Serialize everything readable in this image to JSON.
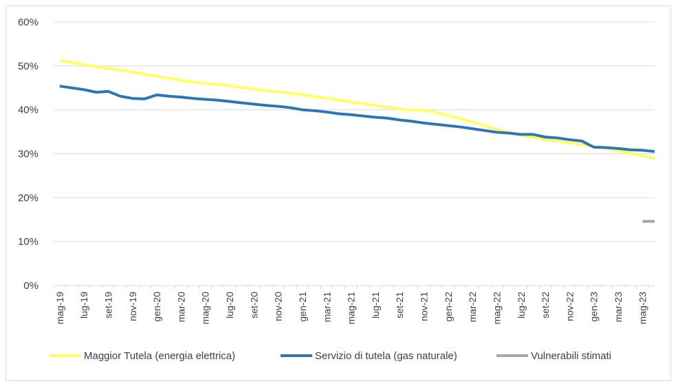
{
  "chart_data": {
    "type": "line",
    "title": "",
    "xlabel": "",
    "ylabel": "",
    "ylim": [
      0,
      60
    ],
    "y_ticks": [
      "0%",
      "10%",
      "20%",
      "30%",
      "40%",
      "50%",
      "60%"
    ],
    "y_tick_values": [
      0,
      10,
      20,
      30,
      40,
      50,
      60
    ],
    "gridlines": true,
    "legend_position": "bottom",
    "x": [
      "mag-19",
      "giu-19",
      "lug-19",
      "ago-19",
      "set-19",
      "ott-19",
      "nov-19",
      "dic-19",
      "gen-20",
      "feb-20",
      "mar-20",
      "apr-20",
      "mag-20",
      "giu-20",
      "lug-20",
      "ago-20",
      "set-20",
      "ott-20",
      "nov-20",
      "dic-20",
      "gen-21",
      "feb-21",
      "mar-21",
      "apr-21",
      "mag-21",
      "giu-21",
      "lug-21",
      "ago-21",
      "set-21",
      "ott-21",
      "nov-21",
      "dic-21",
      "gen-22",
      "feb-22",
      "mar-22",
      "apr-22",
      "mag-22",
      "giu-22",
      "lug-22",
      "ago-22",
      "set-22",
      "ott-22",
      "nov-22",
      "dic-22",
      "gen-23",
      "feb-23",
      "mar-23",
      "apr-23",
      "mag-23",
      "giu-23"
    ],
    "x_tick_labels": [
      "mag-19",
      "lug-19",
      "set-19",
      "nov-19",
      "gen-20",
      "mar-20",
      "mag-20",
      "lug-20",
      "set-20",
      "nov-20",
      "gen-21",
      "mar-21",
      "mag-21",
      "lug-21",
      "set-21",
      "nov-21",
      "gen-22",
      "mar-22",
      "mag-22",
      "lug-22",
      "set-22",
      "nov-22",
      "gen-23",
      "mar-23",
      "mag-23"
    ],
    "series": [
      {
        "name": "Maggior Tutela (energia elettrica)",
        "color": "#ffff66",
        "values": [
          51.3,
          50.8,
          50.3,
          49.8,
          49.4,
          49.0,
          48.6,
          48.1,
          47.6,
          47.2,
          46.7,
          46.3,
          46.0,
          45.8,
          45.5,
          45.1,
          44.7,
          44.4,
          44.1,
          43.8,
          43.4,
          43.0,
          42.6,
          42.2,
          41.8,
          41.4,
          41.0,
          40.6,
          40.2,
          39.9,
          39.9,
          39.4,
          38.7,
          38.0,
          37.2,
          36.4,
          35.6,
          34.9,
          34.2,
          33.7,
          33.2,
          32.9,
          32.5,
          32.1,
          31.6,
          31.2,
          30.7,
          30.1,
          29.5,
          28.9
        ]
      },
      {
        "name": "Servizio di tutela (gas naturale)",
        "color": "#2e75b6",
        "values": [
          45.4,
          45.0,
          44.6,
          44.0,
          44.2,
          43.1,
          42.6,
          42.5,
          43.4,
          43.1,
          42.9,
          42.6,
          42.4,
          42.2,
          41.9,
          41.6,
          41.3,
          41.0,
          40.8,
          40.5,
          40.0,
          39.8,
          39.5,
          39.1,
          38.9,
          38.6,
          38.3,
          38.1,
          37.7,
          37.4,
          37.0,
          36.7,
          36.4,
          36.1,
          35.7,
          35.3,
          34.9,
          34.7,
          34.4,
          34.4,
          33.8,
          33.6,
          33.2,
          32.9,
          31.5,
          31.4,
          31.2,
          30.9,
          30.8,
          30.5
        ]
      },
      {
        "name": "Vulnerabili stimati",
        "color": "#a6a6a6",
        "values": [
          null,
          null,
          null,
          null,
          null,
          null,
          null,
          null,
          null,
          null,
          null,
          null,
          null,
          null,
          null,
          null,
          null,
          null,
          null,
          null,
          null,
          null,
          null,
          null,
          null,
          null,
          null,
          null,
          null,
          null,
          null,
          null,
          null,
          null,
          null,
          null,
          null,
          null,
          null,
          null,
          null,
          null,
          null,
          null,
          null,
          null,
          null,
          null,
          14.6,
          14.6
        ]
      }
    ]
  }
}
